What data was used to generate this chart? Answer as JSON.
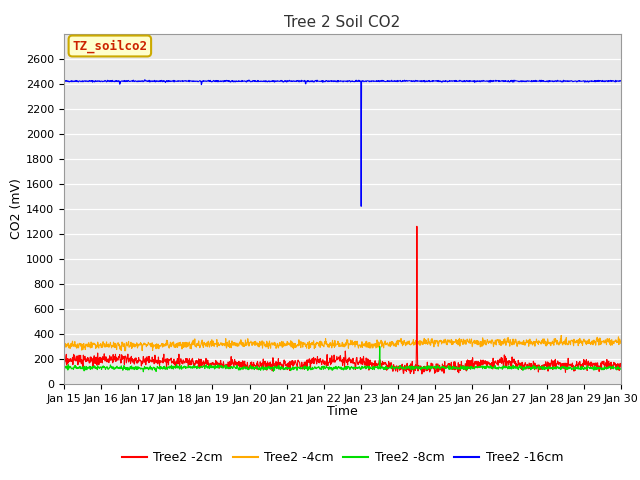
{
  "title": "Tree 2 Soil CO2",
  "xlabel": "Time",
  "ylabel": "CO2 (mV)",
  "ylim": [
    0,
    2800
  ],
  "yticks": [
    0,
    200,
    400,
    600,
    800,
    1000,
    1200,
    1400,
    1600,
    1800,
    2000,
    2200,
    2400,
    2600
  ],
  "xtick_labels": [
    "Jan 15",
    "Jan 16",
    "Jan 17",
    "Jan 18",
    "Jan 19",
    "Jan 20",
    "Jan 21",
    "Jan 22",
    "Jan 23",
    "Jan 24",
    "Jan 25",
    "Jan 26",
    "Jan 27",
    "Jan 28",
    "Jan 29",
    "Jan 30"
  ],
  "fig_bg_color": "#ffffff",
  "plot_bg_color": "#e8e8e8",
  "legend_label": "TZ_soilco2",
  "legend_bg": "#ffffcc",
  "legend_border": "#ccaa00",
  "series_labels": [
    "Tree2 -2cm",
    "Tree2 -4cm",
    "Tree2 -8cm",
    "Tree2 -16cm"
  ],
  "series_colors": [
    "#ff0000",
    "#ffaa00",
    "#00dd00",
    "#0000ff"
  ],
  "title_fontsize": 11,
  "axis_label_fontsize": 9,
  "tick_fontsize": 8,
  "legend_fontsize": 9
}
